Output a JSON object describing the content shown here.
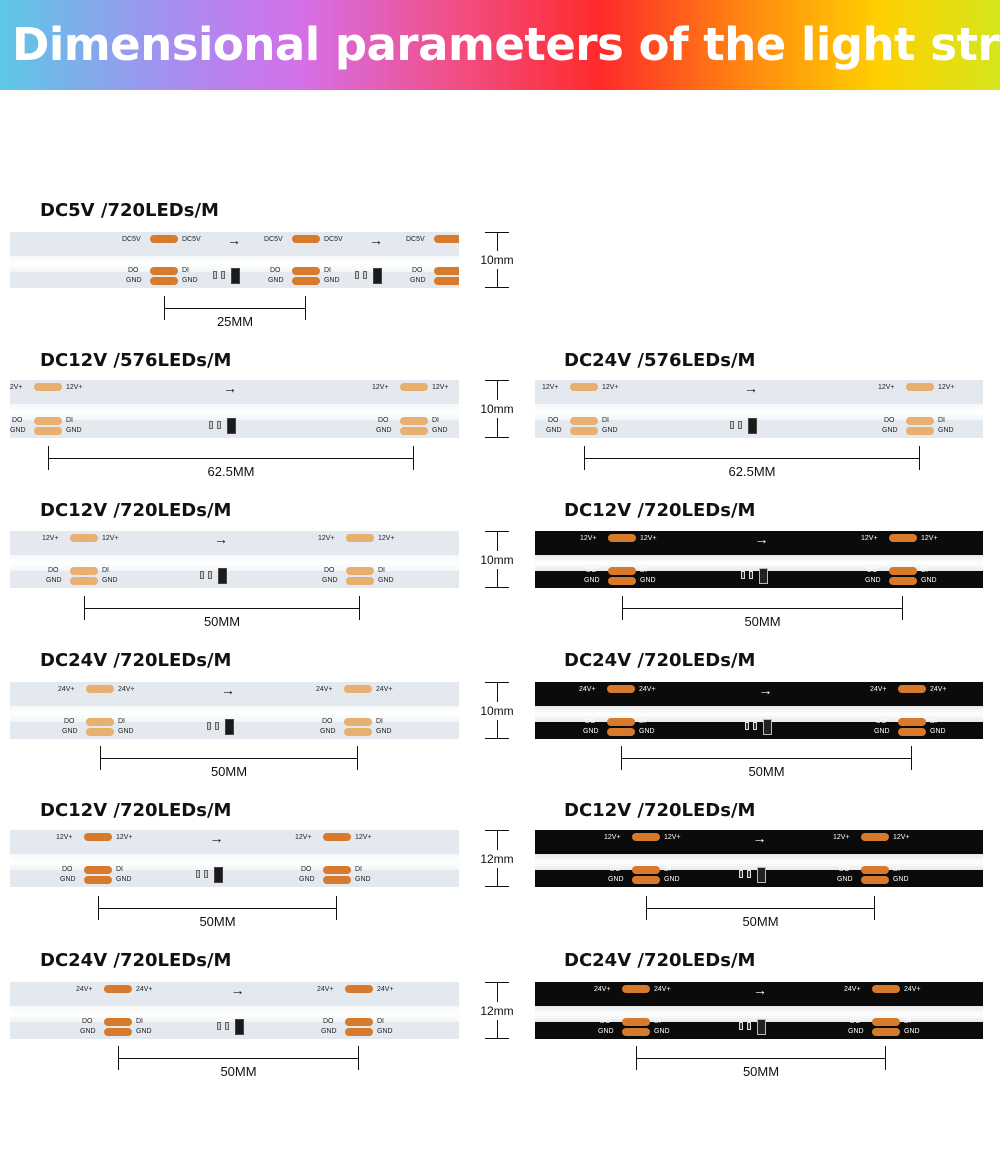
{
  "header": {
    "title": "Dimensional parameters of the light strip"
  },
  "left_labels": [
    "DC5V /720LEDs/M",
    "DC12V /576LEDs/M",
    "DC12V /720LEDs/M",
    "DC24V /720LEDs/M",
    "DC12V /720LEDs/M",
    "DC24V /720LEDs/M"
  ],
  "right_labels": [
    "",
    "DC24V /576LEDs/M",
    "DC12V /720LEDs/M",
    "DC24V /720LEDs/M",
    "DC12V /720LEDs/M",
    "DC24V /720LEDs/M"
  ],
  "widths": [
    "10mm",
    "10mm",
    "10mm",
    "10mm",
    "12mm",
    "12mm"
  ],
  "left_spacing": [
    "25MM",
    "62.5MM",
    "50MM",
    "50MM",
    "50MM",
    "50MM"
  ],
  "right_spacing": [
    "",
    "62.5MM",
    "50MM",
    "50MM",
    "50MM",
    "50MM"
  ],
  "pad_labels": {
    "dc5v": "DC5V",
    "di": "DI",
    "do": "DO",
    "gnd": "GND",
    "v12": "12V+",
    "v24": "24V+",
    "u1": "U1",
    "rv": "RV",
    "c1": "C1"
  }
}
